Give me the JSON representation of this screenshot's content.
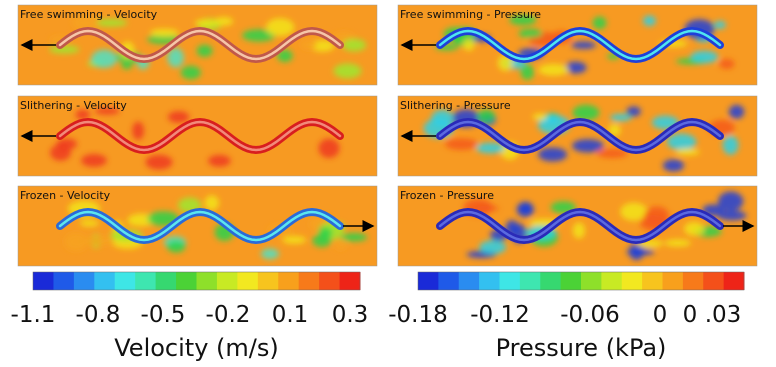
{
  "panels": [
    {
      "label": "Free swimming - Velocity"
    },
    {
      "label": "Slithering  - Velocity"
    },
    {
      "label": "Frozen  - Velocity"
    },
    {
      "label": "Free swimming - Pressure"
    },
    {
      "label": "Slithering  - Pressure"
    },
    {
      "label": "Frozen  - Pressure"
    }
  ],
  "colorbars": [
    {
      "ticks": [
        "-1.1",
        "-0.8",
        "-0.5",
        "-0.2",
        "0.1",
        "0.3"
      ],
      "title": "Velocity (m/s)"
    },
    {
      "ticks": [
        "-0.18",
        "-0.12",
        "-0.06",
        "0",
        "0",
        ".03"
      ],
      "title": "Pressure (kPa)"
    }
  ]
}
